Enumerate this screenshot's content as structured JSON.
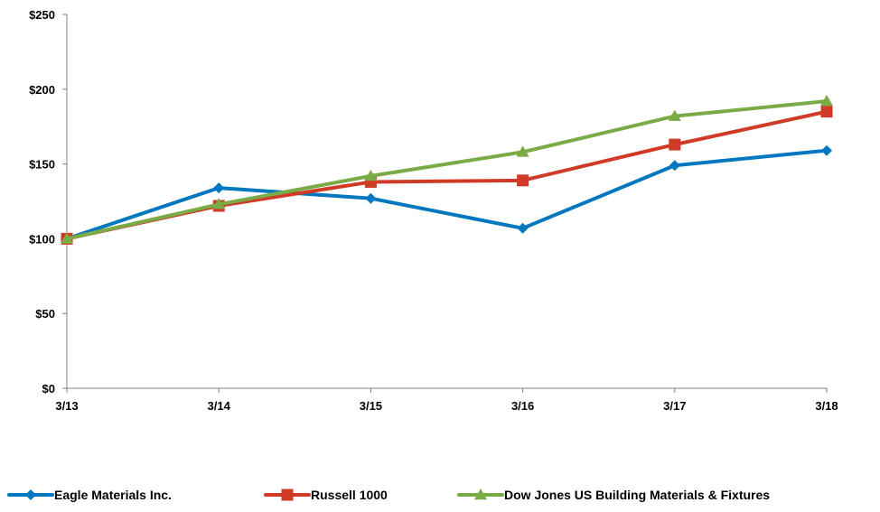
{
  "chart_data": {
    "type": "line",
    "title": "",
    "xlabel": "",
    "ylabel": "",
    "categories": [
      "3/13",
      "3/14",
      "3/15",
      "3/16",
      "3/17",
      "3/18"
    ],
    "ylim": [
      0,
      250
    ],
    "y_ticks": [
      0,
      50,
      100,
      150,
      200,
      250
    ],
    "y_tick_labels": [
      "$0",
      "$50",
      "$100",
      "$150",
      "$200",
      "$250"
    ],
    "grid": false,
    "legend_position": "bottom",
    "series": [
      {
        "name": "Eagle Materials Inc.",
        "color": "#0077BF",
        "marker": "diamond",
        "values": [
          100,
          134,
          127,
          107,
          149,
          159
        ]
      },
      {
        "name": "Russell 1000",
        "color": "#D03B27",
        "marker": "square",
        "values": [
          100,
          122,
          138,
          139,
          163,
          185
        ]
      },
      {
        "name": "Dow Jones US Building Materials & Fixtures",
        "color": "#7AAB46",
        "marker": "triangle",
        "values": [
          100,
          123,
          142,
          158,
          182,
          192
        ]
      }
    ]
  }
}
